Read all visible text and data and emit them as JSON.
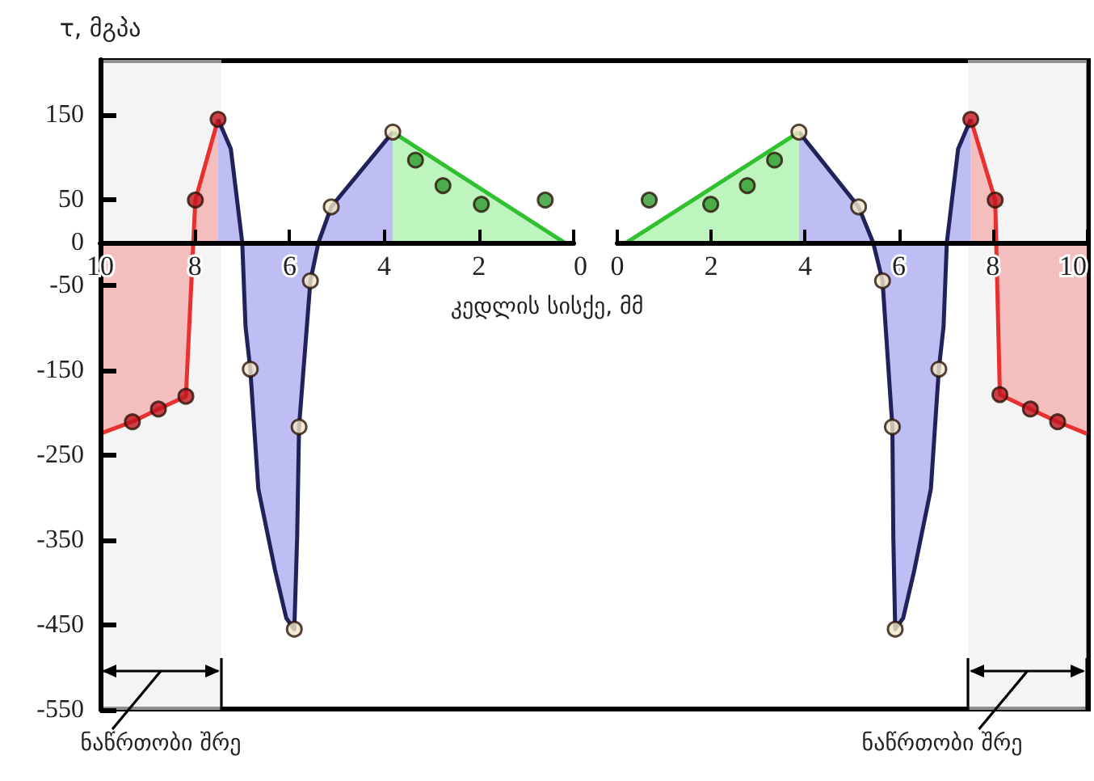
{
  "chart_data": [
    {
      "type": "line",
      "xlabel": "კედლის სისქე, მმ",
      "ylabel": "τ, მგპა",
      "xlim": [
        10,
        0
      ],
      "xticks": [
        10,
        8,
        6,
        4,
        2,
        0
      ],
      "ylim": [
        -550,
        215
      ],
      "yticks": [
        150,
        50,
        0,
        -50,
        -150,
        -250,
        -350,
        -450,
        -550
      ],
      "series": [
        {
          "type": "area",
          "color": "#e83030",
          "marker": "none",
          "x": [
            10,
            9.32,
            8.77,
            8.19,
            7.99,
            7.51
          ],
          "values": [
            -225,
            -211,
            -196,
            -181,
            50,
            145
          ]
        },
        {
          "type": "area",
          "color": "#22225a",
          "marker": "none",
          "x": [
            7.51,
            7.24,
            7.0,
            6.93,
            6.83,
            6.66,
            6.31,
            6.07,
            5.9,
            5.84,
            5.8,
            5.56,
            5.39,
            5.12,
            3.82
          ],
          "values": [
            145,
            110,
            0,
            -99,
            -149,
            -290,
            -385,
            -442,
            -455,
            -347,
            -217,
            -45,
            0,
            42,
            130
          ]
        },
        {
          "type": "area",
          "color": "#30c030",
          "marker": "none",
          "x": [
            3.82,
            0.2
          ],
          "values": [
            130,
            0
          ]
        },
        {
          "type": "scatter",
          "color": "#c0141e",
          "marker": "circle",
          "x": [
            9.32,
            8.77,
            8.19,
            7.99,
            7.51
          ],
          "values": [
            -211,
            -196,
            -181,
            50,
            145
          ]
        },
        {
          "type": "scatter",
          "color": "#f3e6c8",
          "marker": "circle",
          "x": [
            3.82,
            5.12,
            5.56,
            6.83,
            5.8,
            5.9
          ],
          "values": [
            130,
            42,
            -45,
            -149,
            -217,
            -455
          ]
        },
        {
          "type": "scatter",
          "color": "#2e9a2e",
          "marker": "circle",
          "x": [
            3.34,
            2.76,
            1.95,
            0.6
          ],
          "values": [
            97,
            67,
            45,
            50
          ]
        }
      ],
      "bands": [
        {
          "axis": "x",
          "from": 10,
          "to": 7.44,
          "label": "ნაწრთობი შრე",
          "color": "#ececec"
        }
      ]
    },
    {
      "type": "line",
      "tick_labels": "x",
      "xlim": [
        0,
        10
      ],
      "xticks": [
        0,
        2,
        4,
        6,
        8,
        10
      ],
      "ylim": [
        -550,
        215
      ],
      "series": [
        {
          "type": "area",
          "color": "#e83030",
          "marker": "none",
          "x": [
            10,
            9.38,
            8.8,
            8.15,
            8.05,
            7.53
          ],
          "values": [
            -225,
            -211,
            -196,
            -179,
            50,
            145
          ]
        },
        {
          "type": "area",
          "color": "#22225a",
          "marker": "none",
          "x": [
            7.53,
            7.26,
            7.02,
            6.95,
            6.85,
            6.68,
            6.33,
            6.09,
            5.92,
            5.88,
            5.86,
            5.65,
            5.45,
            5.14,
            3.87
          ],
          "values": [
            145,
            110,
            0,
            -99,
            -149,
            -290,
            -385,
            -442,
            -455,
            -347,
            -217,
            -45,
            0,
            42,
            130
          ]
        },
        {
          "type": "area",
          "color": "#30c030",
          "marker": "none",
          "x": [
            3.87,
            0.2
          ],
          "values": [
            130,
            0
          ]
        },
        {
          "type": "scatter",
          "color": "#c0141e",
          "marker": "circle",
          "x": [
            9.38,
            8.8,
            8.15,
            8.05,
            7.53
          ],
          "values": [
            -211,
            -196,
            -179,
            50,
            145
          ]
        },
        {
          "type": "scatter",
          "color": "#f3e6c8",
          "marker": "circle",
          "x": [
            3.87,
            5.14,
            5.65,
            6.85,
            5.86,
            5.92
          ],
          "values": [
            130,
            42,
            -45,
            -149,
            -217,
            -455
          ]
        },
        {
          "type": "scatter",
          "color": "#2e9a2e",
          "marker": "circle",
          "x": [
            3.35,
            2.77,
            1.99,
            0.68
          ],
          "values": [
            97,
            67,
            45,
            50
          ]
        }
      ],
      "bands": [
        {
          "axis": "x",
          "from": 7.47,
          "to": 10,
          "label": "ნაწრთობი შრე",
          "color": "#ececec"
        }
      ]
    }
  ]
}
